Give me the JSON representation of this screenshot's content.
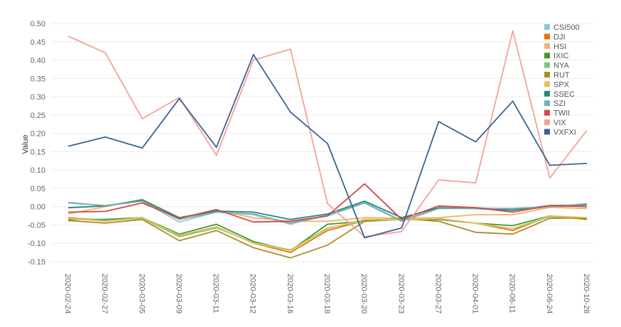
{
  "chart_data": {
    "type": "line",
    "title": "",
    "xlabel": "",
    "ylabel": "Value",
    "ylim": [
      -0.15,
      0.5
    ],
    "yticks": [
      0.5,
      0.45,
      0.4,
      0.35,
      0.3,
      0.25,
      0.2,
      0.15,
      0.1,
      0.05,
      0.0,
      -0.05,
      -0.1,
      -0.15
    ],
    "ytick_labels": [
      "0.50",
      "0.45",
      "0.40",
      "0.35",
      "0.30",
      "0.25",
      "0.20",
      "0.15",
      "0.10",
      "0.05",
      "0.00",
      "-0.05",
      "-0.10",
      "-0.15"
    ],
    "grid": true,
    "legend_position": "top-right",
    "categories": [
      "2020-02-24",
      "2020-02-27",
      "2020-03-05",
      "2020-03-09",
      "2020-03-11",
      "2020-03-12",
      "2020-03-16",
      "2020-03-18",
      "2020-03-20",
      "2020-03-23",
      "2020-03-27",
      "2020-04-01",
      "2020-06-11",
      "2020-06-24",
      "2020-10-28"
    ],
    "series": [
      {
        "name": "CSI500",
        "color": "#8ec5e6",
        "values": [
          0.012,
          0.002,
          0.015,
          -0.042,
          -0.015,
          -0.022,
          -0.048,
          -0.022,
          0.012,
          -0.038,
          -0.003,
          -0.003,
          -0.008,
          -0.002,
          0.005
        ]
      },
      {
        "name": "DJI",
        "color": "#e8740e",
        "values": [
          -0.03,
          -0.038,
          -0.03,
          -0.08,
          -0.055,
          -0.1,
          -0.125,
          -0.065,
          -0.038,
          -0.035,
          -0.035,
          -0.045,
          -0.065,
          -0.025,
          -0.035
        ]
      },
      {
        "name": "HSI",
        "color": "#f2b26a",
        "values": [
          -0.02,
          0.0,
          0.02,
          -0.03,
          -0.01,
          -0.03,
          -0.04,
          -0.04,
          -0.03,
          -0.032,
          -0.03,
          -0.022,
          -0.022,
          -0.002,
          -0.005
        ]
      },
      {
        "name": "IXIC",
        "color": "#3f9a3c",
        "values": [
          -0.035,
          -0.035,
          -0.03,
          -0.075,
          -0.048,
          -0.095,
          -0.12,
          -0.048,
          -0.04,
          -0.035,
          -0.035,
          -0.045,
          -0.052,
          -0.025,
          -0.032
        ]
      },
      {
        "name": "NYA",
        "color": "#80c77a",
        "values": [
          -0.032,
          -0.038,
          -0.032,
          -0.082,
          -0.058,
          -0.098,
          -0.118,
          -0.058,
          -0.04,
          -0.035,
          -0.033,
          -0.045,
          -0.06,
          -0.028,
          -0.03
        ]
      },
      {
        "name": "RUT",
        "color": "#b08b2d",
        "values": [
          -0.038,
          -0.045,
          -0.035,
          -0.093,
          -0.065,
          -0.112,
          -0.14,
          -0.105,
          -0.04,
          -0.032,
          -0.04,
          -0.07,
          -0.075,
          -0.032,
          -0.03
        ]
      },
      {
        "name": "SPX",
        "color": "#e8c15a",
        "values": [
          -0.032,
          -0.04,
          -0.03,
          -0.078,
          -0.055,
          -0.1,
          -0.12,
          -0.06,
          -0.035,
          -0.035,
          -0.032,
          -0.045,
          -0.06,
          -0.025,
          -0.03
        ]
      },
      {
        "name": "SSEC",
        "color": "#2a8581",
        "values": [
          -0.003,
          0.002,
          0.018,
          -0.03,
          -0.012,
          -0.015,
          -0.035,
          -0.02,
          0.015,
          -0.03,
          -0.003,
          -0.005,
          -0.01,
          0.003,
          0.005
        ]
      },
      {
        "name": "SZI",
        "color": "#72b2ab",
        "values": [
          0.01,
          0.003,
          0.015,
          -0.035,
          -0.015,
          -0.02,
          -0.045,
          -0.025,
          0.01,
          -0.04,
          -0.005,
          -0.005,
          -0.005,
          0.0,
          0.008
        ]
      },
      {
        "name": "TWII",
        "color": "#d44848",
        "values": [
          -0.015,
          -0.013,
          0.01,
          -0.032,
          -0.008,
          -0.042,
          -0.04,
          -0.025,
          0.062,
          -0.035,
          0.002,
          -0.003,
          -0.015,
          0.003,
          0.0
        ]
      },
      {
        "name": "VIX",
        "color": "#f3a29c",
        "values": [
          0.465,
          0.42,
          0.24,
          0.298,
          0.14,
          0.4,
          0.43,
          0.008,
          -0.082,
          -0.068,
          0.073,
          0.065,
          0.48,
          0.078,
          0.208
        ]
      },
      {
        "name": "VXFXI",
        "color": "#3a6494",
        "values": [
          0.165,
          0.19,
          0.16,
          0.295,
          0.162,
          0.415,
          0.258,
          0.172,
          -0.085,
          -0.058,
          0.232,
          0.177,
          0.288,
          0.113,
          0.118
        ]
      }
    ]
  }
}
